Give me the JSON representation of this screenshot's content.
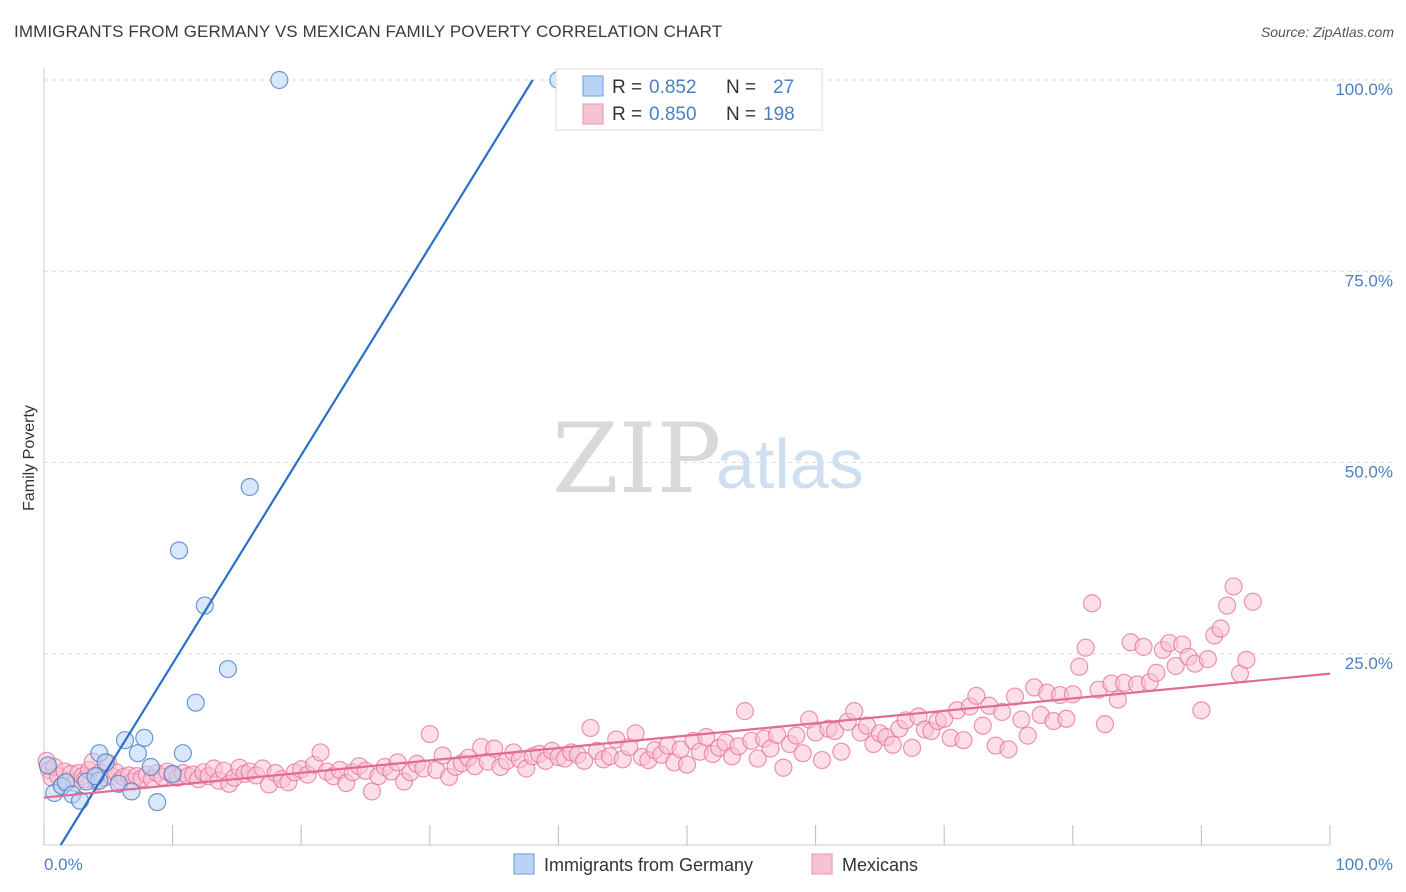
{
  "header": {
    "title": "IMMIGRANTS FROM GERMANY VS MEXICAN FAMILY POVERTY CORRELATION CHART",
    "source": "Source: ZipAtlas.com"
  },
  "watermark": {
    "zip": "ZIP",
    "atlas": "atlas"
  },
  "colors": {
    "blue": "#4a7fc4",
    "blue_fill": "#b8d3f5",
    "blue_line": "#2a6fc9",
    "pink": "#e8729a",
    "pink_fill": "#f7c3d4",
    "pink_line": "#e06b95"
  },
  "chart_data": {
    "type": "scatter",
    "title": "IMMIGRANTS FROM GERMANY VS MEXICAN FAMILY POVERTY CORRELATION CHART",
    "xlabel": "",
    "ylabel": "Family Poverty",
    "xlim": [
      0,
      100
    ],
    "ylim": [
      0,
      100
    ],
    "x_tick_labels": [
      "0.0%",
      "100.0%"
    ],
    "y_ticks": [
      25,
      50,
      75,
      100
    ],
    "y_tick_labels": [
      "25.0%",
      "50.0%",
      "75.0%",
      "100.0%"
    ],
    "grid": true,
    "legend": {
      "position": "top-center",
      "entries": [
        {
          "r_label": "R =",
          "r_value": "0.852",
          "n_label": "N =",
          "n_value": "27"
        },
        {
          "r_label": "R =",
          "r_value": "0.850",
          "n_label": "N =",
          "n_value": "198"
        }
      ]
    },
    "series": [
      {
        "name": "Immigrants from Germany",
        "color": "#4a7fc4",
        "trend": {
          "x": [
            1.3,
            38
          ],
          "y": [
            0,
            100
          ]
        },
        "points": [
          [
            0.3,
            10.4
          ],
          [
            0.8,
            6.8
          ],
          [
            1.4,
            7.7
          ],
          [
            1.7,
            8.2
          ],
          [
            2.2,
            6.6
          ],
          [
            2.8,
            5.8
          ],
          [
            3.3,
            8.3
          ],
          [
            4.3,
            8.4
          ],
          [
            4.3,
            12.0
          ],
          [
            4.8,
            10.8
          ],
          [
            5.8,
            8.0
          ],
          [
            6.3,
            13.7
          ],
          [
            6.8,
            7.0
          ],
          [
            7.3,
            12.0
          ],
          [
            7.8,
            14.0
          ],
          [
            8.3,
            10.2
          ],
          [
            8.8,
            5.6
          ],
          [
            10.0,
            9.3
          ],
          [
            10.5,
            38.5
          ],
          [
            10.8,
            12.0
          ],
          [
            11.8,
            18.6
          ],
          [
            12.5,
            31.3
          ],
          [
            14.3,
            23.0
          ],
          [
            16.0,
            46.8
          ],
          [
            18.3,
            100
          ],
          [
            40,
            100
          ],
          [
            4.0,
            9.0
          ]
        ]
      },
      {
        "name": "Mexicans",
        "color": "#e8729a",
        "trend": {
          "x": [
            0,
            100
          ],
          "y": [
            6.2,
            22.4
          ]
        },
        "points": [
          [
            0.2,
            11.0
          ],
          [
            0.4,
            9.8
          ],
          [
            0.6,
            8.8
          ],
          [
            0.8,
            10.2
          ],
          [
            1.1,
            9.0
          ],
          [
            1.4,
            7.8
          ],
          [
            1.6,
            9.6
          ],
          [
            1.9,
            8.4
          ],
          [
            2.1,
            9.3
          ],
          [
            2.4,
            8.1
          ],
          [
            2.7,
            9.4
          ],
          [
            3.0,
            9.0
          ],
          [
            3.2,
            8.6
          ],
          [
            3.5,
            9.8
          ],
          [
            3.8,
            10.9
          ],
          [
            4.1,
            8.3
          ],
          [
            4.4,
            9.5
          ],
          [
            4.7,
            8.8
          ],
          [
            5.0,
            10.7
          ],
          [
            5.3,
            9.0
          ],
          [
            5.6,
            9.5
          ],
          [
            5.9,
            8.4
          ],
          [
            6.2,
            8.9
          ],
          [
            6.6,
            9.1
          ],
          [
            6.9,
            8.3
          ],
          [
            7.2,
            9.0
          ],
          [
            7.6,
            8.7
          ],
          [
            8.0,
            9.2
          ],
          [
            8.4,
            8.6
          ],
          [
            8.8,
            9.4
          ],
          [
            9.2,
            8.9
          ],
          [
            9.6,
            9.6
          ],
          [
            10.0,
            9.1
          ],
          [
            10.4,
            8.8
          ],
          [
            10.8,
            9.4
          ],
          [
            11.2,
            9.0
          ],
          [
            11.6,
            9.2
          ],
          [
            12.0,
            8.6
          ],
          [
            12.4,
            9.5
          ],
          [
            12.8,
            9.0
          ],
          [
            13.2,
            10.0
          ],
          [
            13.6,
            8.4
          ],
          [
            14.0,
            9.7
          ],
          [
            14.4,
            8.0
          ],
          [
            14.8,
            8.8
          ],
          [
            15.2,
            10.1
          ],
          [
            15.6,
            9.3
          ],
          [
            16.0,
            9.6
          ],
          [
            16.5,
            9.1
          ],
          [
            17.0,
            10.0
          ],
          [
            17.5,
            7.9
          ],
          [
            18.0,
            9.4
          ],
          [
            18.5,
            8.6
          ],
          [
            19.0,
            8.2
          ],
          [
            19.5,
            9.5
          ],
          [
            20.0,
            9.9
          ],
          [
            20.5,
            9.2
          ],
          [
            21.0,
            10.5
          ],
          [
            21.5,
            12.1
          ],
          [
            22.0,
            9.6
          ],
          [
            22.5,
            9.0
          ],
          [
            23.0,
            9.8
          ],
          [
            23.5,
            8.1
          ],
          [
            24.0,
            9.5
          ],
          [
            24.5,
            10.3
          ],
          [
            25.0,
            9.7
          ],
          [
            25.5,
            7.0
          ],
          [
            26.0,
            9.0
          ],
          [
            26.5,
            10.2
          ],
          [
            27.0,
            9.6
          ],
          [
            27.5,
            10.8
          ],
          [
            28.0,
            8.3
          ],
          [
            28.5,
            9.5
          ],
          [
            29.0,
            10.6
          ],
          [
            29.5,
            10.0
          ],
          [
            30.0,
            14.5
          ],
          [
            30.5,
            9.8
          ],
          [
            31.0,
            11.7
          ],
          [
            31.5,
            8.9
          ],
          [
            32.0,
            10.2
          ],
          [
            32.5,
            10.7
          ],
          [
            33.0,
            11.4
          ],
          [
            33.5,
            10.3
          ],
          [
            34.0,
            12.8
          ],
          [
            34.5,
            10.9
          ],
          [
            35.0,
            12.6
          ],
          [
            35.5,
            10.2
          ],
          [
            36.0,
            11.0
          ],
          [
            36.5,
            12.1
          ],
          [
            37.0,
            11.2
          ],
          [
            37.5,
            10.0
          ],
          [
            38.0,
            11.6
          ],
          [
            38.5,
            11.9
          ],
          [
            39.0,
            11.0
          ],
          [
            39.5,
            12.3
          ],
          [
            40.0,
            11.5
          ],
          [
            40.5,
            11.3
          ],
          [
            41.0,
            12.1
          ],
          [
            41.5,
            11.8
          ],
          [
            42.0,
            11.0
          ],
          [
            42.5,
            15.3
          ],
          [
            43.0,
            12.3
          ],
          [
            43.5,
            11.2
          ],
          [
            44.0,
            11.6
          ],
          [
            44.5,
            13.8
          ],
          [
            45.0,
            11.2
          ],
          [
            45.5,
            12.8
          ],
          [
            46.0,
            14.6
          ],
          [
            46.5,
            11.5
          ],
          [
            47.0,
            11.1
          ],
          [
            47.5,
            12.4
          ],
          [
            48.0,
            11.8
          ],
          [
            48.5,
            13.0
          ],
          [
            49.0,
            10.8
          ],
          [
            49.5,
            12.5
          ],
          [
            50.0,
            10.5
          ],
          [
            50.5,
            13.6
          ],
          [
            51.0,
            12.2
          ],
          [
            51.5,
            14.1
          ],
          [
            52.0,
            11.9
          ],
          [
            52.5,
            12.7
          ],
          [
            53.0,
            13.4
          ],
          [
            53.5,
            11.6
          ],
          [
            54.0,
            12.9
          ],
          [
            54.5,
            17.5
          ],
          [
            55.0,
            13.6
          ],
          [
            55.5,
            11.3
          ],
          [
            56.0,
            13.9
          ],
          [
            56.5,
            12.6
          ],
          [
            57.0,
            14.4
          ],
          [
            57.5,
            10.1
          ],
          [
            58.0,
            13.2
          ],
          [
            58.5,
            14.3
          ],
          [
            59.0,
            12.0
          ],
          [
            59.5,
            16.4
          ],
          [
            60.0,
            14.7
          ],
          [
            60.5,
            11.1
          ],
          [
            61.0,
            15.2
          ],
          [
            61.5,
            14.9
          ],
          [
            62.0,
            12.2
          ],
          [
            62.5,
            16.1
          ],
          [
            63.0,
            17.5
          ],
          [
            63.5,
            14.7
          ],
          [
            64.0,
            15.6
          ],
          [
            64.5,
            13.2
          ],
          [
            65.0,
            14.6
          ],
          [
            65.5,
            14.1
          ],
          [
            66.0,
            13.1
          ],
          [
            66.5,
            15.2
          ],
          [
            67.0,
            16.3
          ],
          [
            67.5,
            12.7
          ],
          [
            68.0,
            16.8
          ],
          [
            68.5,
            15.1
          ],
          [
            69.0,
            14.9
          ],
          [
            69.5,
            16.2
          ],
          [
            70.0,
            16.5
          ],
          [
            70.5,
            14.0
          ],
          [
            71.0,
            17.6
          ],
          [
            71.5,
            13.7
          ],
          [
            72.0,
            18.1
          ],
          [
            72.5,
            19.5
          ],
          [
            73.0,
            15.6
          ],
          [
            73.5,
            18.2
          ],
          [
            74.0,
            13.0
          ],
          [
            74.5,
            17.4
          ],
          [
            75.0,
            12.5
          ],
          [
            75.5,
            19.4
          ],
          [
            76.0,
            16.4
          ],
          [
            76.5,
            14.3
          ],
          [
            77.0,
            20.6
          ],
          [
            77.5,
            17.0
          ],
          [
            78.0,
            19.9
          ],
          [
            78.5,
            16.2
          ],
          [
            79.0,
            19.6
          ],
          [
            79.5,
            16.5
          ],
          [
            80.0,
            19.7
          ],
          [
            80.5,
            23.3
          ],
          [
            81.0,
            25.8
          ],
          [
            81.5,
            31.6
          ],
          [
            82.0,
            20.3
          ],
          [
            82.5,
            15.8
          ],
          [
            83.0,
            21.1
          ],
          [
            83.5,
            19.0
          ],
          [
            84.0,
            21.2
          ],
          [
            84.5,
            26.5
          ],
          [
            85.0,
            21.0
          ],
          [
            85.5,
            25.9
          ],
          [
            86.0,
            21.3
          ],
          [
            86.5,
            22.5
          ],
          [
            87.0,
            25.5
          ],
          [
            87.5,
            26.4
          ],
          [
            88.0,
            23.4
          ],
          [
            88.5,
            26.2
          ],
          [
            89.0,
            24.6
          ],
          [
            89.5,
            23.7
          ],
          [
            90.0,
            17.6
          ],
          [
            90.5,
            24.3
          ],
          [
            91.0,
            27.4
          ],
          [
            91.5,
            28.3
          ],
          [
            92.0,
            31.3
          ],
          [
            92.5,
            33.8
          ],
          [
            93.0,
            22.4
          ],
          [
            93.5,
            24.2
          ],
          [
            94.0,
            31.8
          ]
        ]
      }
    ],
    "bottom_legend": [
      "Immigrants from Germany",
      "Mexicans"
    ]
  }
}
